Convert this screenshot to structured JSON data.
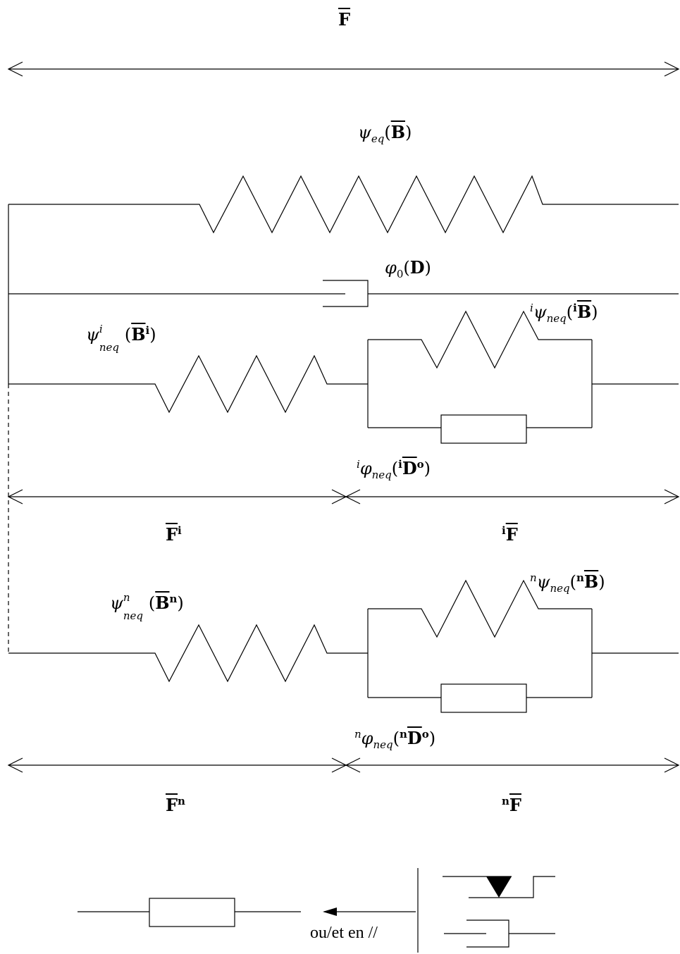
{
  "labels": {
    "F_total": "F",
    "psi_eq": {
      "sym": "ψ",
      "sub": "eq",
      "arg": "B"
    },
    "phi_0": {
      "sym": "φ",
      "sub": "0",
      "arg": "D"
    },
    "psi_neq_i": {
      "sym": "ψ",
      "sup": "i",
      "sub": "neq",
      "arg": "B",
      "argsup": "i"
    },
    "ipsi_neq": {
      "pre": "i",
      "sym": "ψ",
      "sub": "neq",
      "argpre": "i",
      "arg": "B"
    },
    "iphi_neq": {
      "pre": "i",
      "sym": "φ",
      "sub": "neq",
      "argpre": "i",
      "arg": "D",
      "argsup": "o"
    },
    "F_i": {
      "base": "F",
      "sup": "i"
    },
    "iF": {
      "pre": "i",
      "base": "F"
    },
    "psi_neq_n": {
      "sym": "ψ",
      "sup": "n",
      "sub": "neq",
      "arg": "B",
      "argsup": "n"
    },
    "npsi_neq": {
      "pre": "n",
      "sym": "ψ",
      "sub": "neq",
      "argpre": "n",
      "arg": "B"
    },
    "nphi_neq": {
      "pre": "n",
      "sym": "φ",
      "sub": "neq",
      "argpre": "n",
      "arg": "D",
      "argsup": "o"
    },
    "F_n": {
      "base": "F",
      "sup": "n"
    },
    "nF": {
      "pre": "n",
      "base": "F"
    }
  },
  "legend": {
    "text": "ou/et en //"
  }
}
